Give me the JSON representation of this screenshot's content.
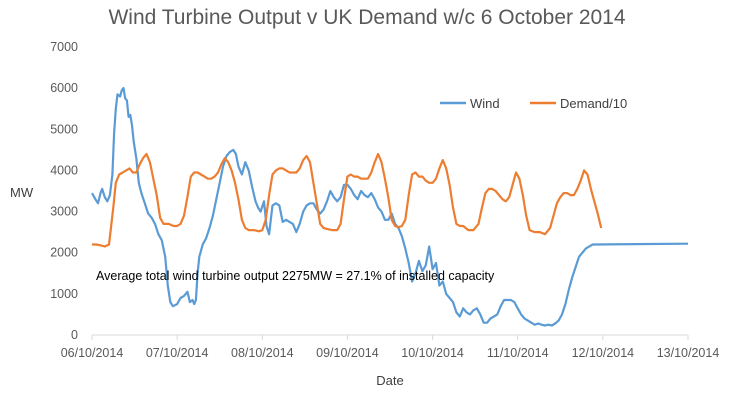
{
  "chart_data": {
    "type": "line",
    "title": "Wind Turbine Output v UK Demand w/c 6 October 2014",
    "xlabel": "Date",
    "ylabel": "MW",
    "ylim": [
      0,
      7000
    ],
    "yticks": [
      0,
      1000,
      2000,
      3000,
      4000,
      5000,
      6000,
      7000
    ],
    "xticks": [
      "06/10/2014",
      "07/10/2014",
      "08/10/2014",
      "09/10/2014",
      "10/10/2014",
      "11/10/2014",
      "12/10/2014",
      "13/10/2014"
    ],
    "x_range_days": [
      0,
      7
    ],
    "grid": false,
    "legend": "top-right",
    "annotation": "Average total wind turbine output 2275MW = 27.1% of installed capacity",
    "colors": {
      "Wind": "#5b9bd5",
      "Demand/10": "#ed7d31",
      "axis": "#d9d9d9",
      "text": "#595959"
    },
    "series": [
      {
        "name": "Wind",
        "points": [
          [
            0.0,
            3450
          ],
          [
            0.04,
            3300
          ],
          [
            0.07,
            3200
          ],
          [
            0.1,
            3450
          ],
          [
            0.12,
            3550
          ],
          [
            0.15,
            3350
          ],
          [
            0.18,
            3250
          ],
          [
            0.21,
            3400
          ],
          [
            0.24,
            3900
          ],
          [
            0.26,
            4900
          ],
          [
            0.28,
            5500
          ],
          [
            0.3,
            5850
          ],
          [
            0.33,
            5800
          ],
          [
            0.35,
            5950
          ],
          [
            0.37,
            6000
          ],
          [
            0.39,
            5750
          ],
          [
            0.41,
            5700
          ],
          [
            0.43,
            5300
          ],
          [
            0.45,
            5350
          ],
          [
            0.47,
            5100
          ],
          [
            0.49,
            4700
          ],
          [
            0.52,
            4300
          ],
          [
            0.55,
            3700
          ],
          [
            0.58,
            3450
          ],
          [
            0.62,
            3200
          ],
          [
            0.66,
            2950
          ],
          [
            0.7,
            2850
          ],
          [
            0.74,
            2700
          ],
          [
            0.78,
            2450
          ],
          [
            0.82,
            2300
          ],
          [
            0.86,
            1900
          ],
          [
            0.89,
            1200
          ],
          [
            0.92,
            800
          ],
          [
            0.95,
            700
          ],
          [
            1.0,
            750
          ],
          [
            1.04,
            900
          ],
          [
            1.08,
            950
          ],
          [
            1.12,
            1050
          ],
          [
            1.15,
            800
          ],
          [
            1.18,
            850
          ],
          [
            1.2,
            750
          ],
          [
            1.22,
            850
          ],
          [
            1.24,
            1500
          ],
          [
            1.26,
            1900
          ],
          [
            1.3,
            2200
          ],
          [
            1.34,
            2350
          ],
          [
            1.38,
            2600
          ],
          [
            1.42,
            2900
          ],
          [
            1.46,
            3300
          ],
          [
            1.5,
            3700
          ],
          [
            1.54,
            4100
          ],
          [
            1.58,
            4350
          ],
          [
            1.62,
            4450
          ],
          [
            1.66,
            4500
          ],
          [
            1.69,
            4400
          ],
          [
            1.72,
            4100
          ],
          [
            1.76,
            3900
          ],
          [
            1.8,
            4200
          ],
          [
            1.84,
            4000
          ],
          [
            1.88,
            3600
          ],
          [
            1.92,
            3250
          ],
          [
            1.95,
            3100
          ],
          [
            1.98,
            3000
          ],
          [
            2.02,
            3250
          ],
          [
            2.05,
            2650
          ],
          [
            2.08,
            2450
          ],
          [
            2.12,
            3150
          ],
          [
            2.16,
            3200
          ],
          [
            2.2,
            3150
          ],
          [
            2.24,
            2750
          ],
          [
            2.28,
            2800
          ],
          [
            2.32,
            2750
          ],
          [
            2.36,
            2700
          ],
          [
            2.4,
            2500
          ],
          [
            2.44,
            2700
          ],
          [
            2.48,
            3000
          ],
          [
            2.52,
            3150
          ],
          [
            2.56,
            3200
          ],
          [
            2.6,
            3200
          ],
          [
            2.64,
            3050
          ],
          [
            2.68,
            2950
          ],
          [
            2.72,
            3050
          ],
          [
            2.76,
            3250
          ],
          [
            2.8,
            3500
          ],
          [
            2.84,
            3350
          ],
          [
            2.88,
            3250
          ],
          [
            2.92,
            3350
          ],
          [
            2.96,
            3650
          ],
          [
            3.0,
            3650
          ],
          [
            3.04,
            3550
          ],
          [
            3.08,
            3400
          ],
          [
            3.12,
            3300
          ],
          [
            3.16,
            3500
          ],
          [
            3.2,
            3400
          ],
          [
            3.24,
            3350
          ],
          [
            3.28,
            3450
          ],
          [
            3.32,
            3300
          ],
          [
            3.36,
            3100
          ],
          [
            3.4,
            3000
          ],
          [
            3.44,
            2800
          ],
          [
            3.48,
            2800
          ],
          [
            3.52,
            2950
          ],
          [
            3.56,
            2700
          ],
          [
            3.6,
            2600
          ],
          [
            3.64,
            2400
          ],
          [
            3.68,
            2100
          ],
          [
            3.72,
            1750
          ],
          [
            3.76,
            1300
          ],
          [
            3.8,
            1500
          ],
          [
            3.84,
            1800
          ],
          [
            3.88,
            1550
          ],
          [
            3.92,
            1700
          ],
          [
            3.96,
            2150
          ],
          [
            4.0,
            1600
          ],
          [
            4.04,
            1750
          ],
          [
            4.08,
            1200
          ],
          [
            4.12,
            1300
          ],
          [
            4.16,
            1000
          ],
          [
            4.2,
            900
          ],
          [
            4.24,
            800
          ],
          [
            4.28,
            550
          ],
          [
            4.32,
            450
          ],
          [
            4.36,
            650
          ],
          [
            4.4,
            550
          ],
          [
            4.44,
            500
          ],
          [
            4.48,
            600
          ],
          [
            4.52,
            650
          ],
          [
            4.56,
            500
          ],
          [
            4.6,
            300
          ],
          [
            4.64,
            300
          ],
          [
            4.68,
            400
          ],
          [
            4.72,
            450
          ],
          [
            4.76,
            500
          ],
          [
            4.8,
            700
          ],
          [
            4.84,
            850
          ],
          [
            4.88,
            850
          ],
          [
            4.92,
            850
          ],
          [
            4.96,
            800
          ],
          [
            5.0,
            650
          ],
          [
            5.04,
            500
          ],
          [
            5.08,
            400
          ],
          [
            5.12,
            350
          ],
          [
            5.16,
            300
          ],
          [
            5.2,
            250
          ],
          [
            5.24,
            280
          ],
          [
            5.28,
            250
          ],
          [
            5.32,
            230
          ],
          [
            5.36,
            250
          ],
          [
            5.4,
            230
          ],
          [
            5.44,
            280
          ],
          [
            5.48,
            350
          ],
          [
            5.52,
            500
          ],
          [
            5.56,
            750
          ],
          [
            5.6,
            1100
          ],
          [
            5.64,
            1400
          ],
          [
            5.68,
            1650
          ],
          [
            5.72,
            1900
          ],
          [
            5.76,
            2000
          ],
          [
            5.8,
            2100
          ],
          [
            5.84,
            2150
          ],
          [
            5.88,
            2200
          ],
          [
            7.0,
            2220
          ]
        ]
      },
      {
        "name": "Demand/10",
        "points": [
          [
            0.0,
            2200
          ],
          [
            0.05,
            2200
          ],
          [
            0.1,
            2180
          ],
          [
            0.15,
            2150
          ],
          [
            0.2,
            2200
          ],
          [
            0.22,
            2550
          ],
          [
            0.25,
            3100
          ],
          [
            0.28,
            3700
          ],
          [
            0.32,
            3900
          ],
          [
            0.36,
            3950
          ],
          [
            0.4,
            4000
          ],
          [
            0.44,
            4050
          ],
          [
            0.48,
            3950
          ],
          [
            0.52,
            3950
          ],
          [
            0.56,
            4150
          ],
          [
            0.6,
            4300
          ],
          [
            0.64,
            4400
          ],
          [
            0.68,
            4200
          ],
          [
            0.72,
            3800
          ],
          [
            0.76,
            3400
          ],
          [
            0.8,
            2850
          ],
          [
            0.84,
            2700
          ],
          [
            0.9,
            2700
          ],
          [
            0.96,
            2650
          ],
          [
            1.0,
            2650
          ],
          [
            1.04,
            2700
          ],
          [
            1.08,
            2900
          ],
          [
            1.12,
            3350
          ],
          [
            1.16,
            3850
          ],
          [
            1.2,
            3950
          ],
          [
            1.24,
            3950
          ],
          [
            1.28,
            3900
          ],
          [
            1.32,
            3850
          ],
          [
            1.36,
            3800
          ],
          [
            1.4,
            3800
          ],
          [
            1.44,
            3850
          ],
          [
            1.48,
            3950
          ],
          [
            1.52,
            4150
          ],
          [
            1.56,
            4300
          ],
          [
            1.6,
            4200
          ],
          [
            1.64,
            4000
          ],
          [
            1.68,
            3700
          ],
          [
            1.72,
            3300
          ],
          [
            1.76,
            2800
          ],
          [
            1.8,
            2600
          ],
          [
            1.84,
            2550
          ],
          [
            1.9,
            2550
          ],
          [
            1.96,
            2520
          ],
          [
            2.0,
            2550
          ],
          [
            2.04,
            2800
          ],
          [
            2.08,
            3400
          ],
          [
            2.12,
            3900
          ],
          [
            2.16,
            4000
          ],
          [
            2.2,
            4050
          ],
          [
            2.24,
            4050
          ],
          [
            2.28,
            4000
          ],
          [
            2.32,
            3950
          ],
          [
            2.36,
            3950
          ],
          [
            2.4,
            3950
          ],
          [
            2.44,
            4050
          ],
          [
            2.48,
            4250
          ],
          [
            2.52,
            4350
          ],
          [
            2.56,
            4200
          ],
          [
            2.6,
            3700
          ],
          [
            2.64,
            3200
          ],
          [
            2.68,
            2700
          ],
          [
            2.72,
            2600
          ],
          [
            2.76,
            2580
          ],
          [
            2.82,
            2550
          ],
          [
            2.88,
            2550
          ],
          [
            2.92,
            2700
          ],
          [
            2.96,
            3300
          ],
          [
            3.0,
            3850
          ],
          [
            3.04,
            3900
          ],
          [
            3.08,
            3850
          ],
          [
            3.12,
            3850
          ],
          [
            3.16,
            3800
          ],
          [
            3.2,
            3800
          ],
          [
            3.24,
            3800
          ],
          [
            3.28,
            3950
          ],
          [
            3.32,
            4200
          ],
          [
            3.36,
            4400
          ],
          [
            3.4,
            4200
          ],
          [
            3.44,
            3800
          ],
          [
            3.48,
            3350
          ],
          [
            3.52,
            2800
          ],
          [
            3.56,
            2650
          ],
          [
            3.6,
            2620
          ],
          [
            3.64,
            2650
          ],
          [
            3.68,
            2800
          ],
          [
            3.72,
            3400
          ],
          [
            3.76,
            3900
          ],
          [
            3.8,
            3950
          ],
          [
            3.84,
            3850
          ],
          [
            3.88,
            3850
          ],
          [
            3.92,
            3750
          ],
          [
            3.96,
            3700
          ],
          [
            4.0,
            3700
          ],
          [
            4.04,
            3800
          ],
          [
            4.08,
            4050
          ],
          [
            4.12,
            4250
          ],
          [
            4.16,
            4050
          ],
          [
            4.2,
            3650
          ],
          [
            4.24,
            3100
          ],
          [
            4.28,
            2700
          ],
          [
            4.32,
            2650
          ],
          [
            4.36,
            2650
          ],
          [
            4.42,
            2550
          ],
          [
            4.48,
            2550
          ],
          [
            4.54,
            2700
          ],
          [
            4.58,
            3100
          ],
          [
            4.62,
            3450
          ],
          [
            4.66,
            3550
          ],
          [
            4.7,
            3550
          ],
          [
            4.74,
            3500
          ],
          [
            4.78,
            3400
          ],
          [
            4.82,
            3300
          ],
          [
            4.86,
            3250
          ],
          [
            4.9,
            3350
          ],
          [
            4.94,
            3650
          ],
          [
            4.98,
            3950
          ],
          [
            5.02,
            3800
          ],
          [
            5.06,
            3400
          ],
          [
            5.1,
            2900
          ],
          [
            5.14,
            2550
          ],
          [
            5.2,
            2500
          ],
          [
            5.26,
            2500
          ],
          [
            5.32,
            2450
          ],
          [
            5.38,
            2600
          ],
          [
            5.42,
            2900
          ],
          [
            5.46,
            3200
          ],
          [
            5.5,
            3350
          ],
          [
            5.54,
            3450
          ],
          [
            5.58,
            3450
          ],
          [
            5.62,
            3400
          ],
          [
            5.66,
            3400
          ],
          [
            5.7,
            3550
          ],
          [
            5.74,
            3750
          ],
          [
            5.78,
            4000
          ],
          [
            5.82,
            3900
          ],
          [
            5.86,
            3550
          ],
          [
            5.9,
            3250
          ],
          [
            5.94,
            2950
          ],
          [
            5.98,
            2600
          ]
        ]
      }
    ]
  }
}
